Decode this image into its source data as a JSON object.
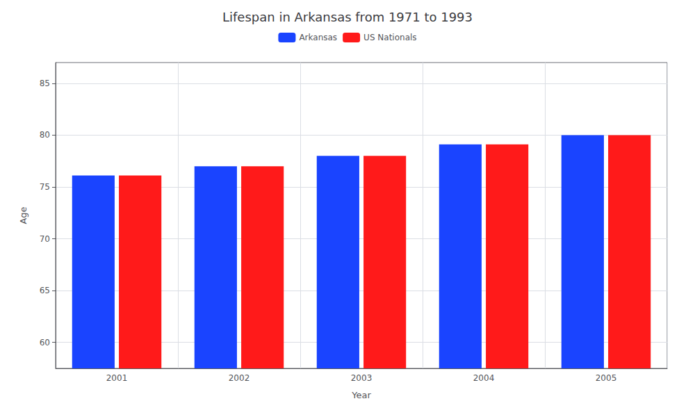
{
  "chart_data": {
    "type": "bar",
    "title": "Lifespan in Arkansas from 1971 to 1993",
    "xlabel": "Year",
    "ylabel": "Age",
    "categories": [
      "2001",
      "2002",
      "2003",
      "2004",
      "2005"
    ],
    "series": [
      {
        "name": "Arkansas",
        "color": "#1a44ff",
        "values": [
          76.1,
          77.0,
          78.0,
          79.1,
          80.0
        ]
      },
      {
        "name": "US Nationals",
        "color": "#ff1a1a",
        "values": [
          76.1,
          77.0,
          78.0,
          79.1,
          80.0
        ]
      }
    ],
    "ylim": [
      57.5,
      87
    ],
    "yticks": [
      60,
      65,
      70,
      75,
      80,
      85
    ],
    "grid": true,
    "legend": "top"
  }
}
